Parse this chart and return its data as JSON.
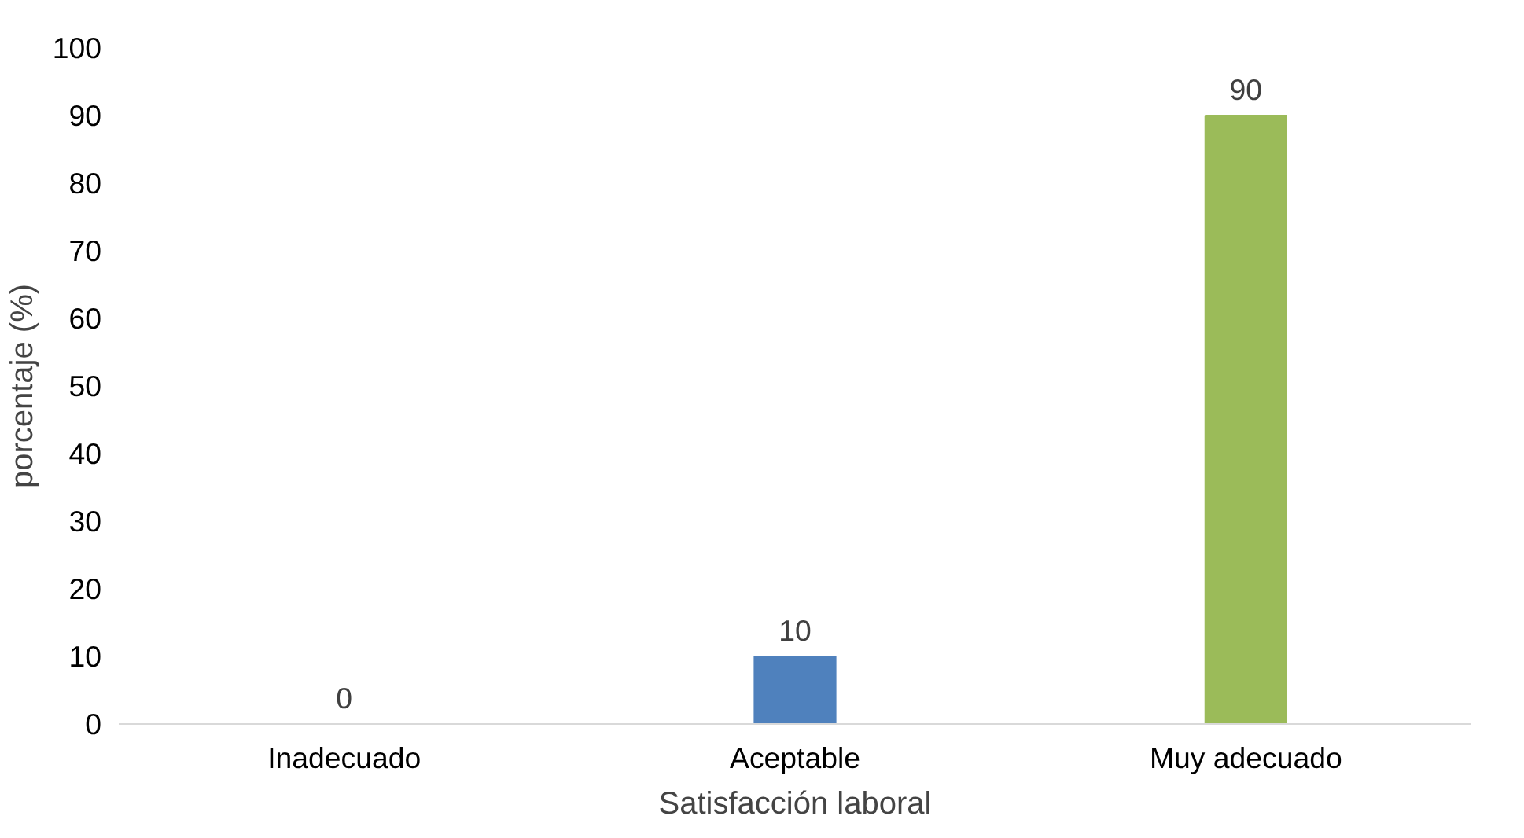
{
  "chart_data": {
    "type": "bar",
    "xlabel": "Satisfacción laboral",
    "ylabel": "porcentaje (%)",
    "categories": [
      "Inadecuado",
      "Aceptable",
      "Muy adecuado"
    ],
    "values": [
      0,
      10,
      90
    ],
    "colors": [
      "#c0504d",
      "#4f81bd",
      "#9bbb59"
    ],
    "ylim": [
      0,
      100
    ],
    "yticks": [
      0,
      10,
      20,
      30,
      40,
      50,
      60,
      70,
      80,
      90,
      100
    ],
    "data_labels": true,
    "grid": false
  }
}
